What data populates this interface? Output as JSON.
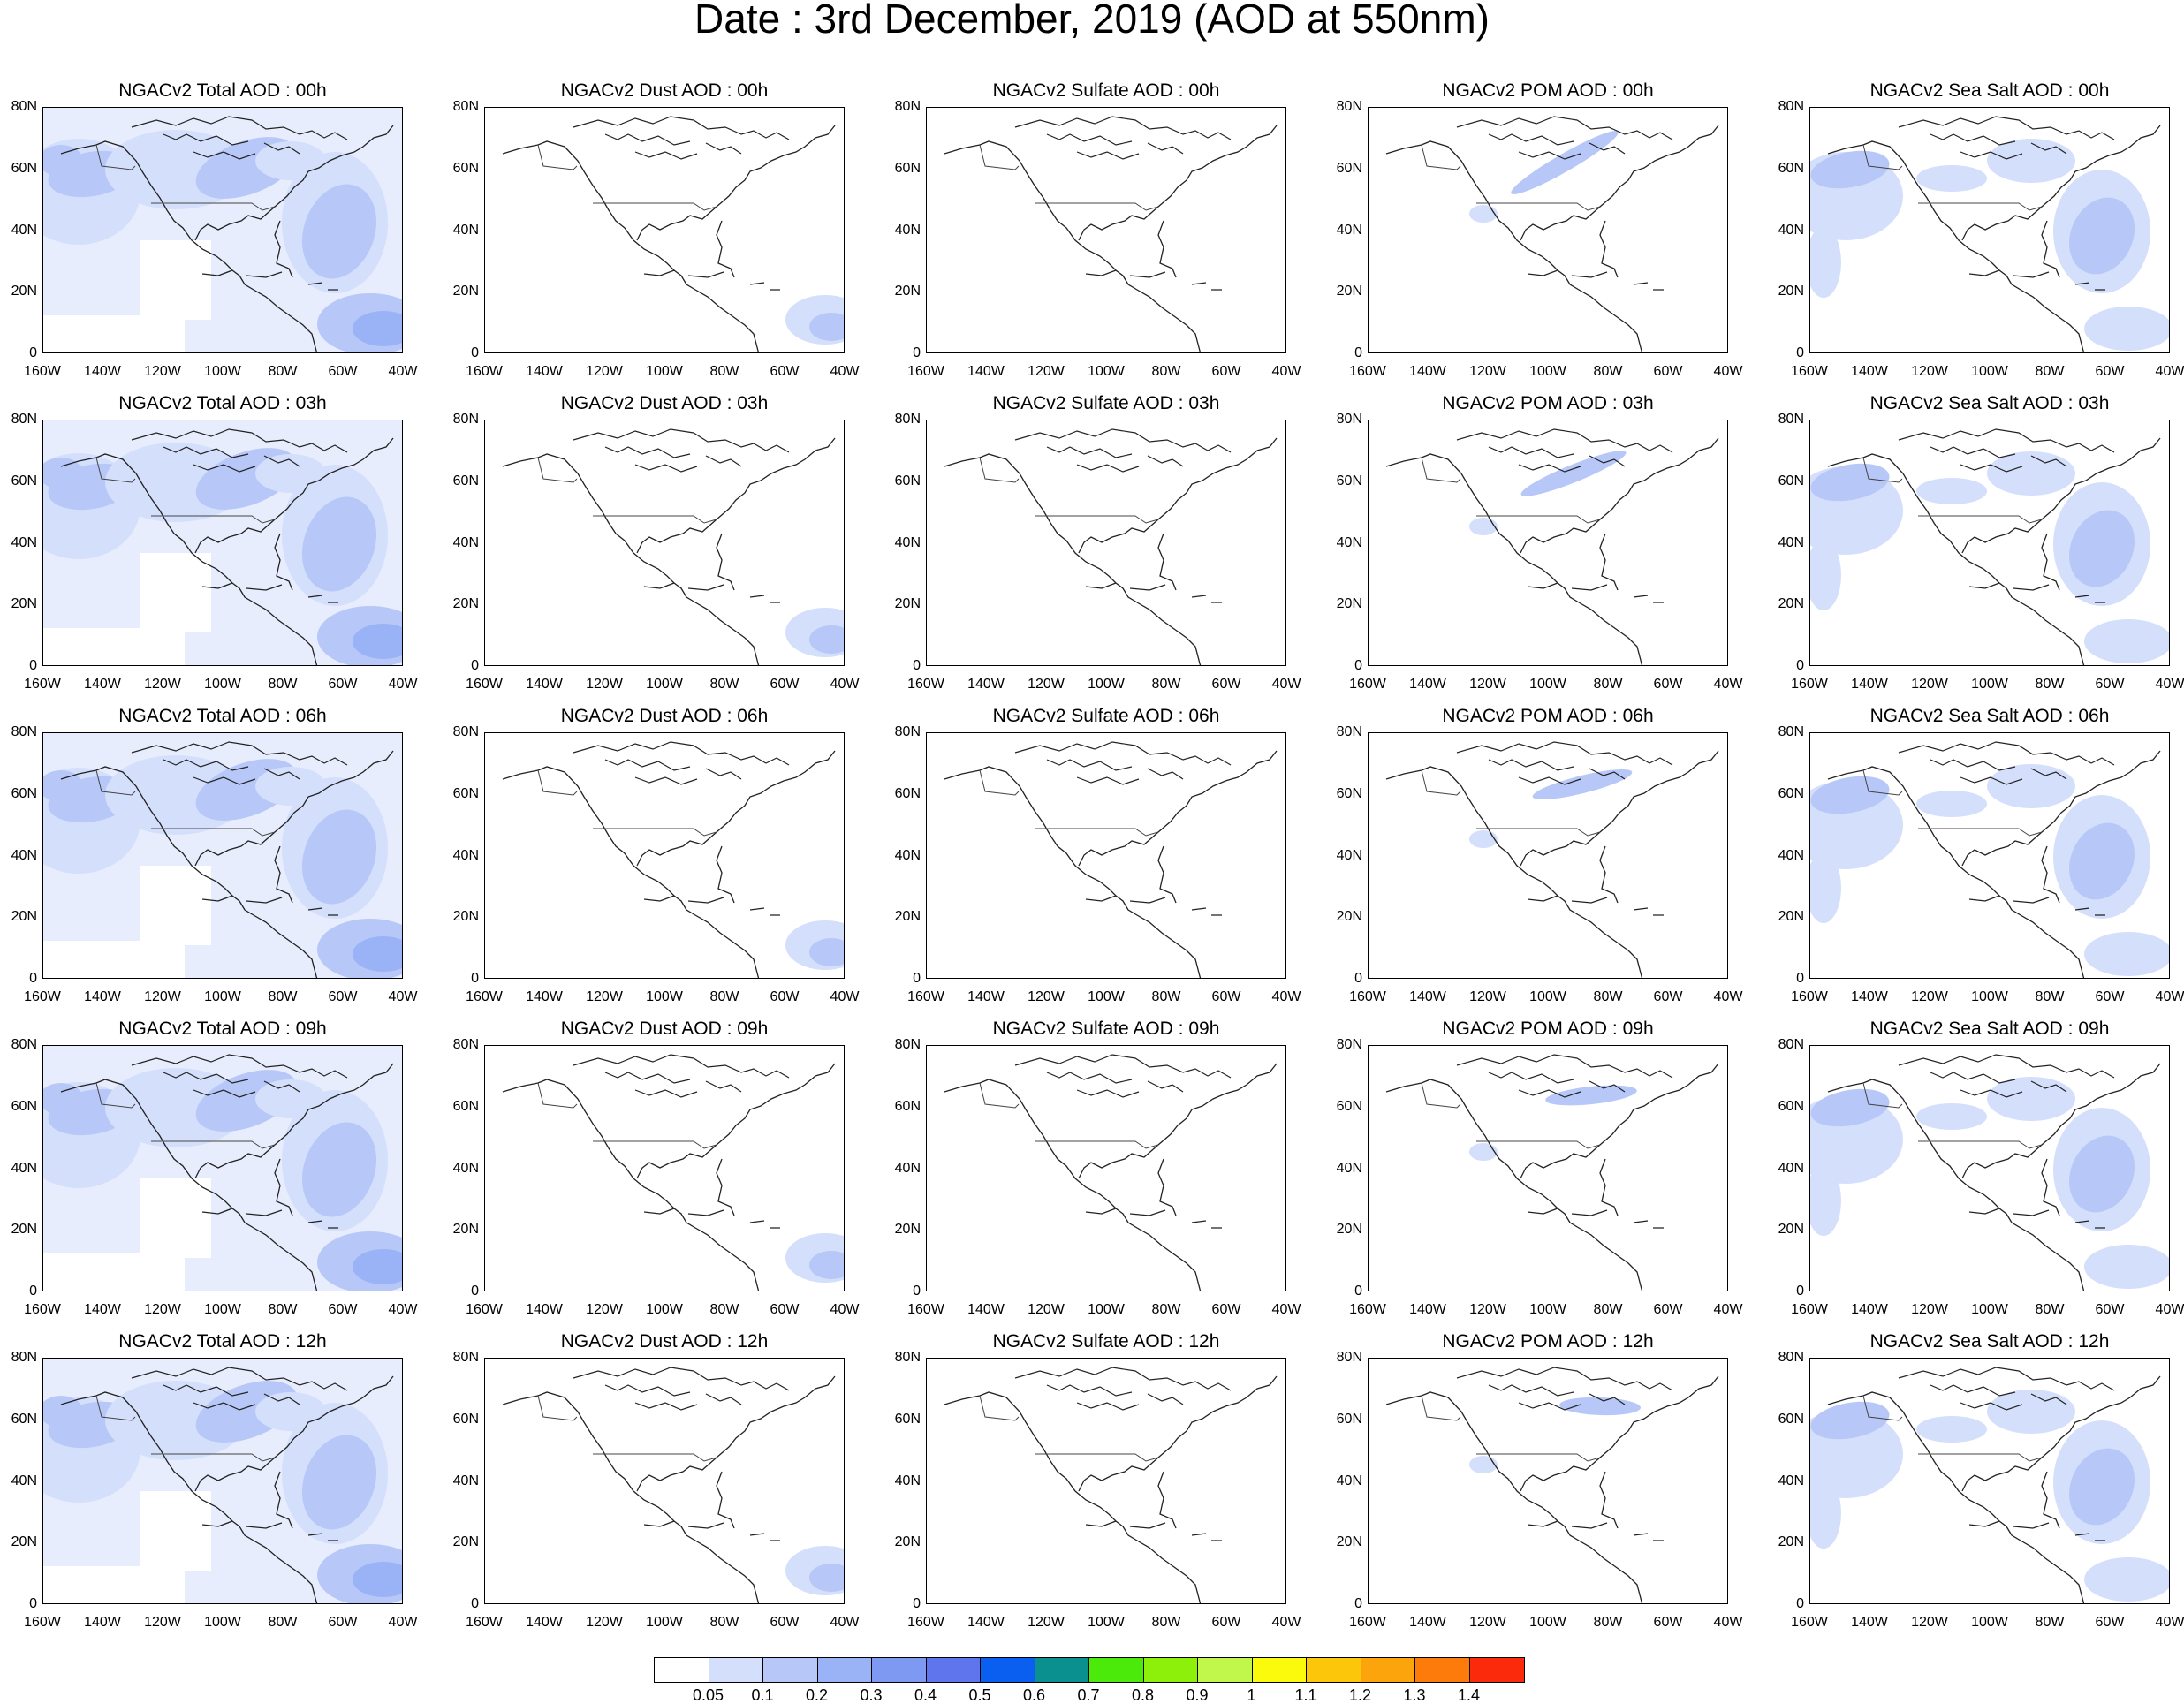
{
  "title": "Date : 3rd December, 2019 (AOD at 550nm)",
  "axes": {
    "y_ticks": [
      "80N",
      "60N",
      "40N",
      "20N",
      "0"
    ],
    "x_ticks": [
      "160W",
      "140W",
      "120W",
      "100W",
      "80W",
      "60W",
      "40W"
    ]
  },
  "columns": [
    "total",
    "dust",
    "sulfate",
    "pom",
    "seasalt"
  ],
  "panel_titles": [
    [
      "NGACv2 Total AOD : 00h",
      "NGACv2 Dust AOD : 00h",
      "NGACv2 Sulfate AOD : 00h",
      "NGACv2 POM AOD : 00h",
      "NGACv2 Sea Salt AOD : 00h"
    ],
    [
      "NGACv2 Total AOD : 03h",
      "NGACv2 Dust AOD : 03h",
      "NGACv2 Sulfate AOD : 03h",
      "NGACv2 POM AOD : 03h",
      "NGACv2 Sea Salt AOD : 03h"
    ],
    [
      "NGACv2 Total AOD : 06h",
      "NGACv2 Dust AOD : 06h",
      "NGACv2 Sulfate AOD : 06h",
      "NGACv2 POM AOD : 06h",
      "NGACv2 Sea Salt AOD : 06h"
    ],
    [
      "NGACv2 Total AOD : 09h",
      "NGACv2 Dust AOD : 09h",
      "NGACv2 Sulfate AOD : 09h",
      "NGACv2 POM AOD : 09h",
      "NGACv2 Sea Salt  AOD : 09h"
    ],
    [
      "NGACv2 Total AOD  : 12h",
      "NGACv2 Dust AOD : 12h",
      "NGACv2 Sulfate AOD : 12h",
      "NGACv2 POM  AOD : 12h",
      "NGACv2 Sea Salt  AOD : 12h"
    ]
  ],
  "colorbar": {
    "colors": [
      "#ffffff",
      "#d4dffb",
      "#b7c8f8",
      "#9ab2f6",
      "#7d99f2",
      "#5f75ee",
      "#0b5ff0",
      "#0b9090",
      "#4cea0b",
      "#8cf00b",
      "#c1f64a",
      "#fcfa0c",
      "#fcc60b",
      "#fca40b",
      "#fc7b0b",
      "#fa2a0b"
    ],
    "labels": [
      "0.05",
      "0.1",
      "0.2",
      "0.3",
      "0.4",
      "0.5",
      "0.6",
      "0.7",
      "0.8",
      "0.9",
      "1",
      "1.1",
      "1.2",
      "1.3",
      "1.4"
    ]
  }
}
